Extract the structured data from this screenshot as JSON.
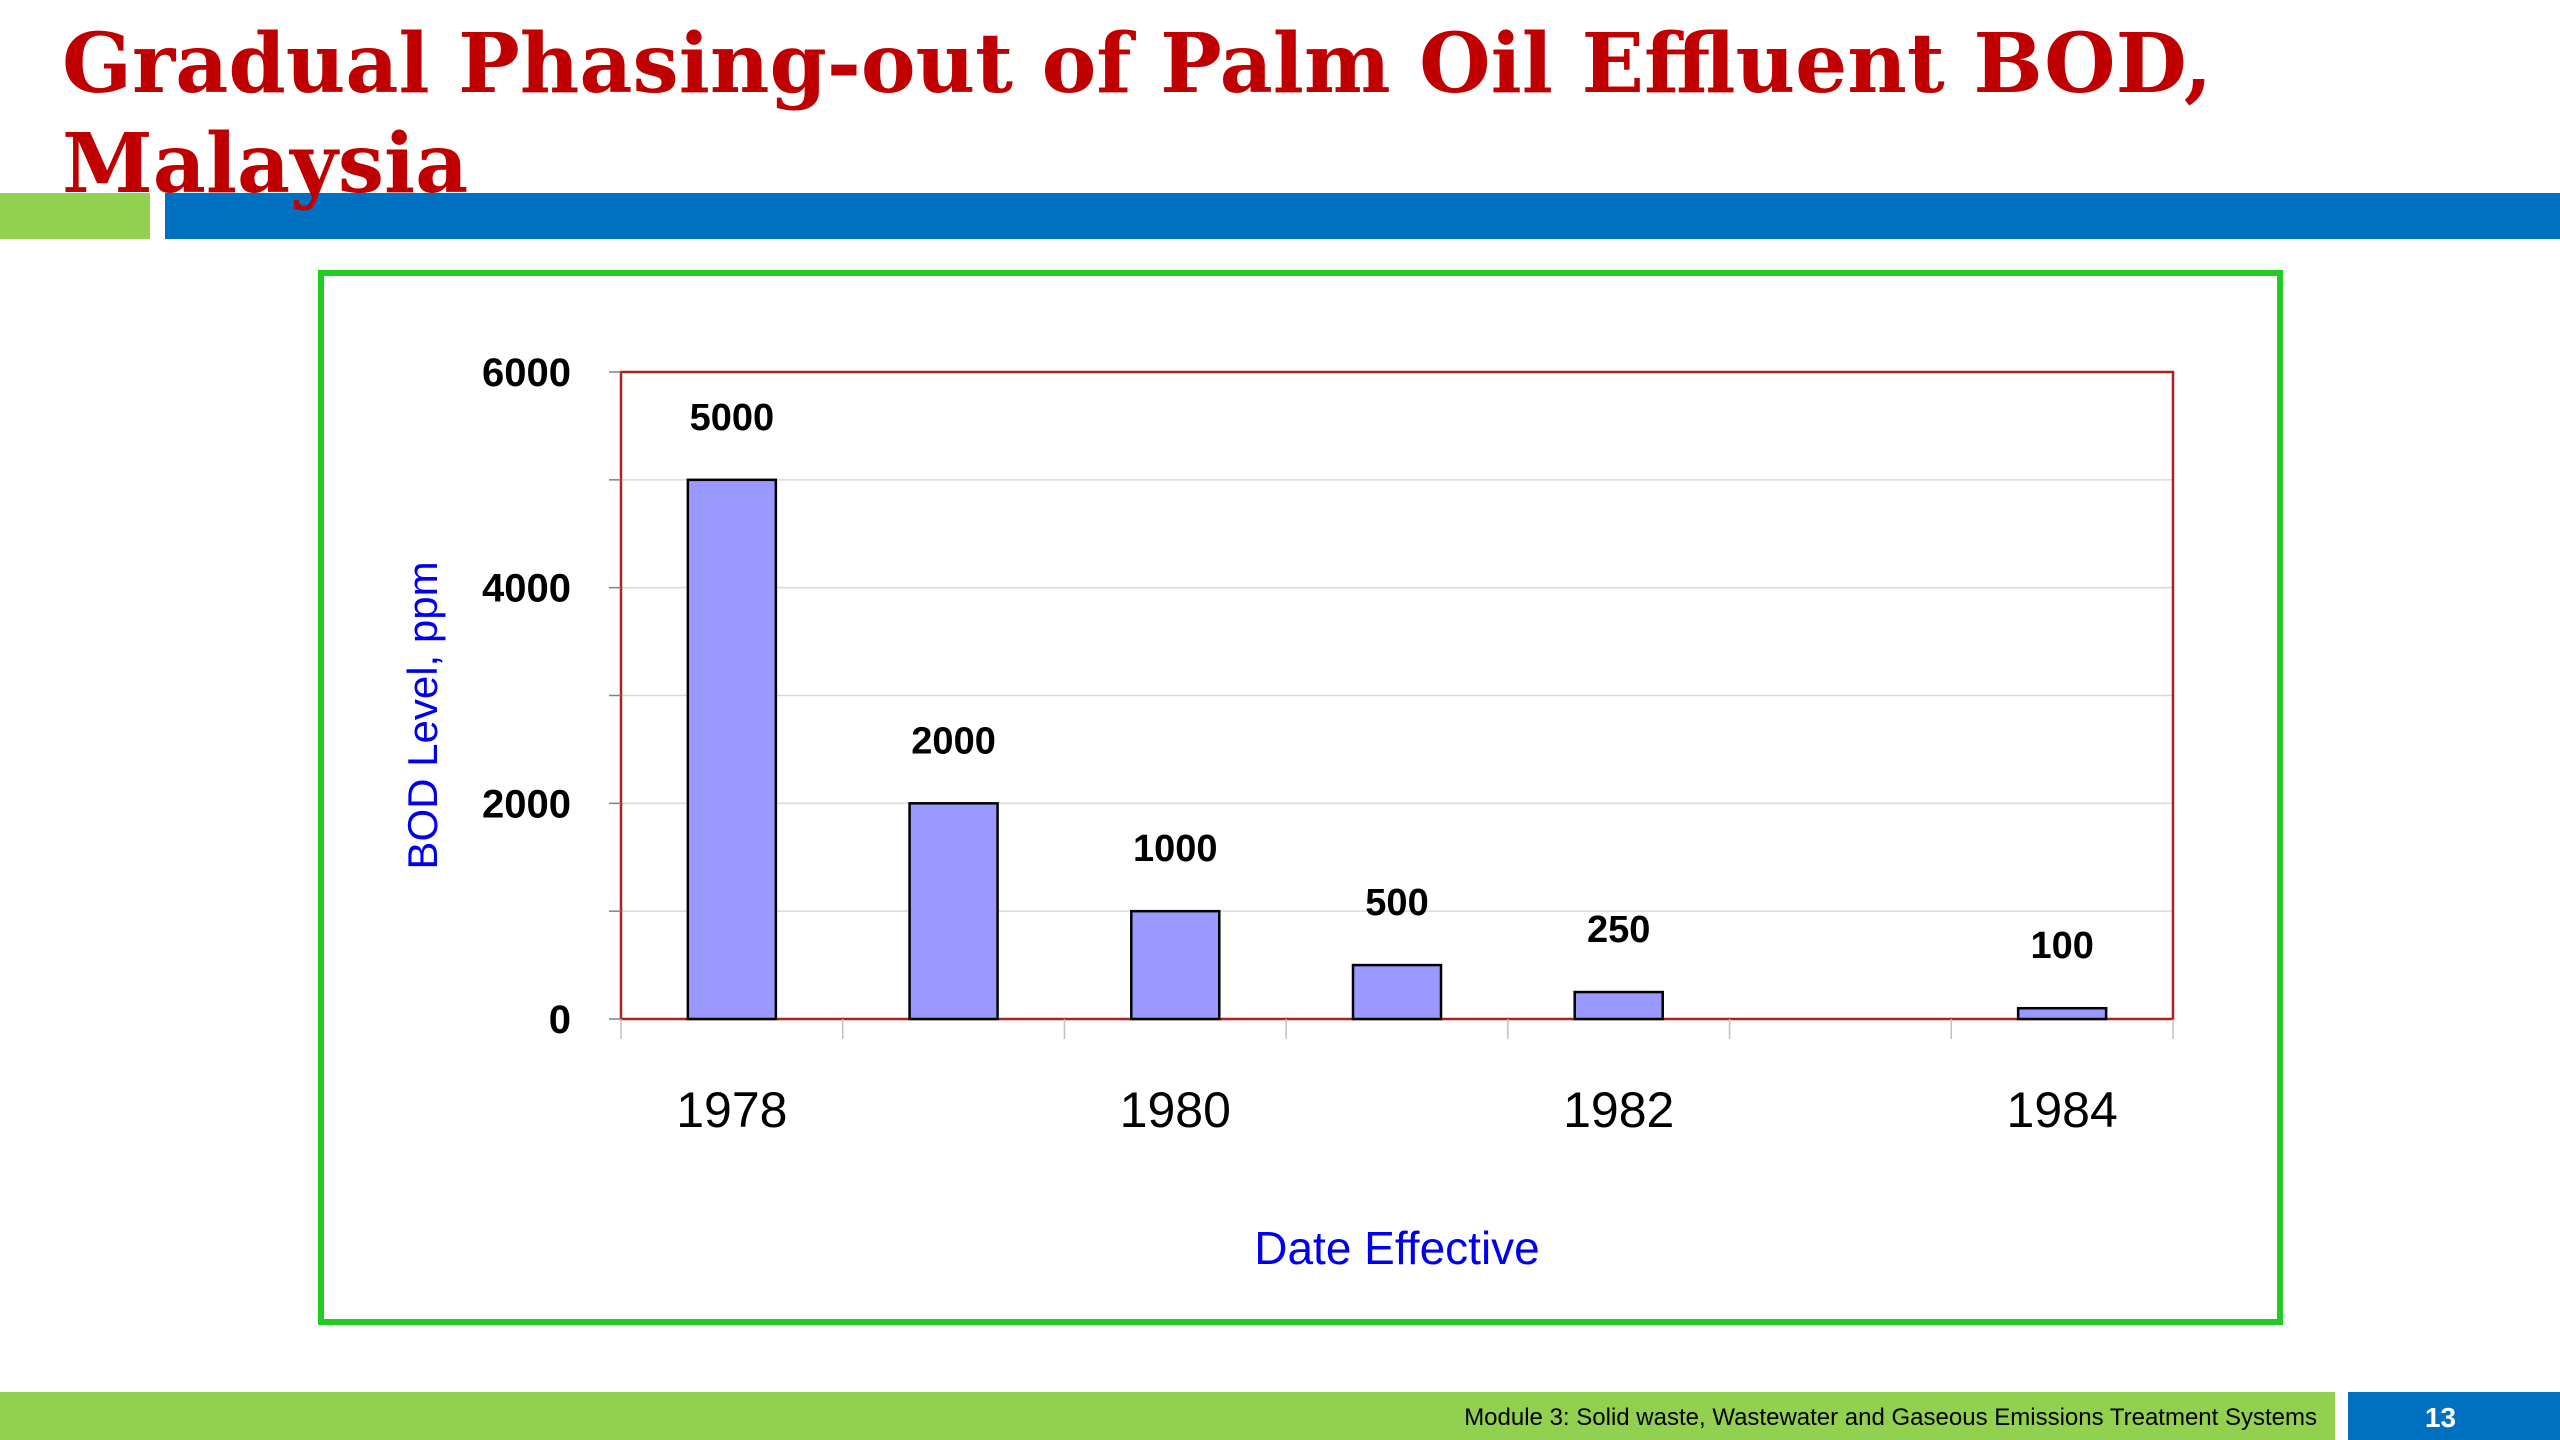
{
  "slide": {
    "title": "Gradual Phasing-out of Palm Oil Effluent BOD, Malaysia",
    "footer": "Module 3: Solid waste, Wastewater and Gaseous Emissions Treatment Systems",
    "page_number": "13"
  },
  "colors": {
    "title": "#c00000",
    "accent_green": "#92d050",
    "accent_blue": "#0070c0",
    "frame_border": "#22cc22",
    "bar_fill": "#9999ff",
    "plot_border": "#aa2222",
    "axis_label": "#0000ee"
  },
  "chart_data": {
    "type": "bar",
    "title": "",
    "xlabel": "Date Effective",
    "ylabel": "BOD Level, ppm",
    "ylim": [
      0,
      6000
    ],
    "yticks": [
      0,
      2000,
      4000,
      6000
    ],
    "xlim": [
      1977.5,
      1984.5
    ],
    "xticks": [
      1978,
      1980,
      1982,
      1984
    ],
    "grid": true,
    "legend": "none",
    "x": [
      1978,
      1979,
      1980,
      1981,
      1982,
      1984
    ],
    "values": [
      5000,
      2000,
      1000,
      500,
      250,
      100
    ],
    "data_labels": [
      "5000",
      "2000",
      "1000",
      "500",
      "250",
      "100"
    ]
  }
}
